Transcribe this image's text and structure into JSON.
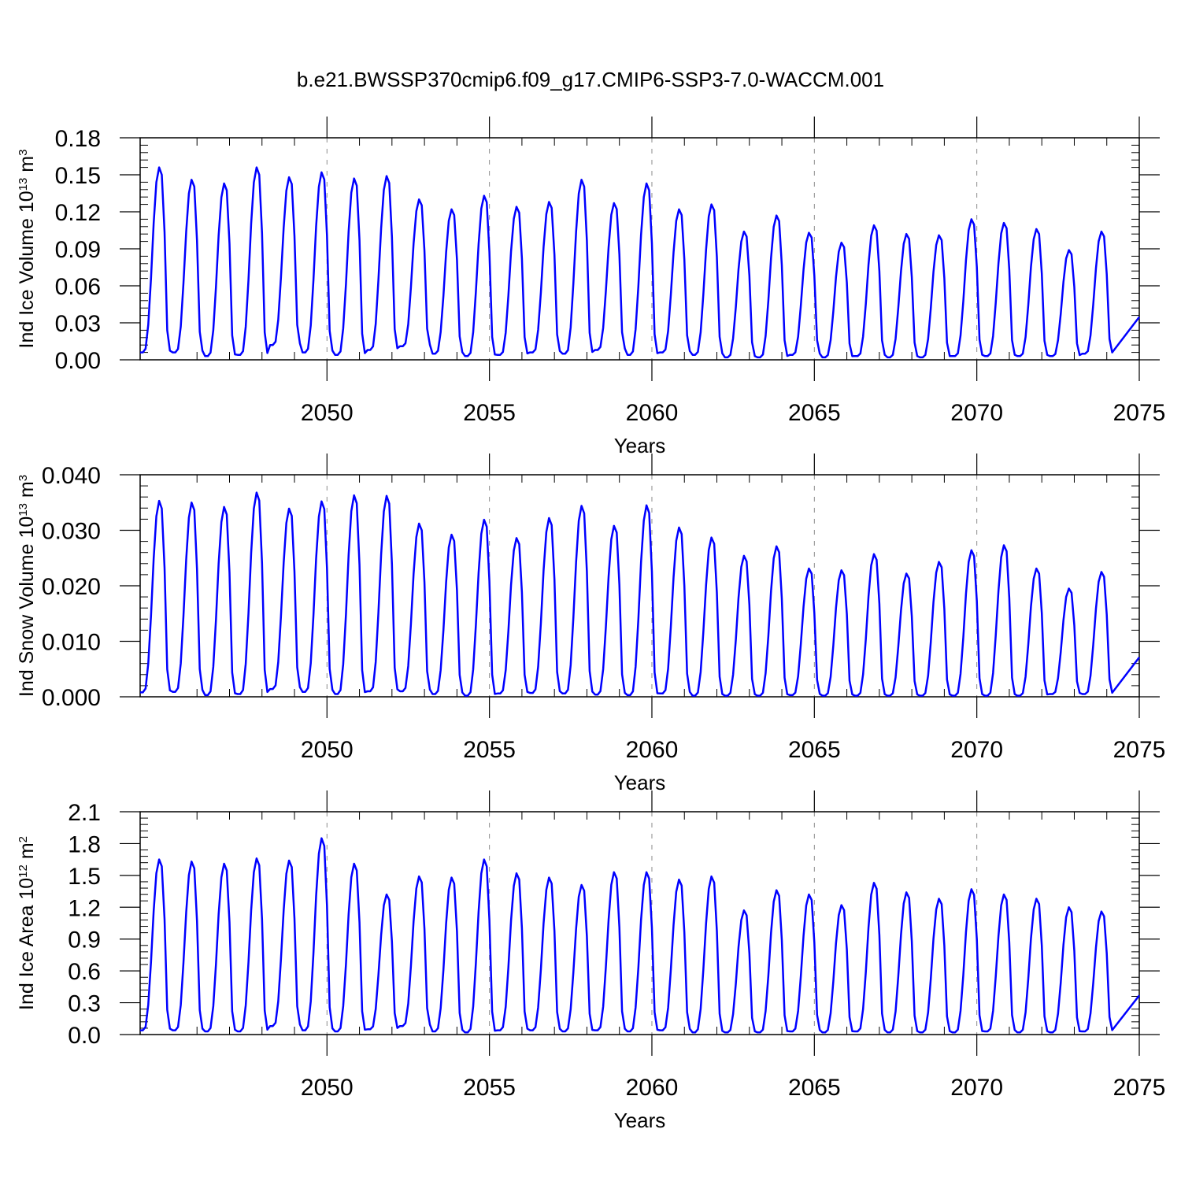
{
  "title": "b.e21.BWSSP370cmip6.f09_g17.CMIP6-SSP3-7.0-WACCM.001",
  "colors": {
    "series": "#0000ff",
    "axis": "#000000",
    "grid": "#8c8c8c",
    "background": "#ffffff"
  },
  "chart_data": [
    {
      "type": "line",
      "xlabel": "Years",
      "ylabel_main": "Ind Ice Volume 10",
      "ylabel_exp": "13",
      "ylabel_unit": " m",
      "ylabel_unit_exp": "3",
      "xlim": [
        2044.25,
        2075.0
      ],
      "xticks": [
        "2050",
        "2055",
        "2060",
        "2065",
        "2070",
        "2075"
      ],
      "xtick_values": [
        2050,
        2055,
        2060,
        2065,
        2070,
        2075
      ],
      "ylim": [
        0.0,
        0.18
      ],
      "yticks": [
        "0.00",
        "0.03",
        "0.06",
        "0.09",
        "0.12",
        "0.15",
        "0.18"
      ],
      "ytick_values": [
        0.0,
        0.03,
        0.06,
        0.09,
        0.12,
        0.15,
        0.18
      ],
      "vertical_gridlines": [
        2050,
        2055,
        2060,
        2065,
        2070
      ],
      "start_year": 2044.25,
      "annual_min": [
        0.006,
        0.006,
        0.003,
        0.004,
        0.012,
        0.006,
        0.004,
        0.008,
        0.011,
        0.005,
        0.003,
        0.004,
        0.006,
        0.005,
        0.008,
        0.004,
        0.006,
        0.004,
        0.002,
        0.002,
        0.004,
        0.002,
        0.003,
        0.002,
        0.002,
        0.003,
        0.003,
        0.003,
        0.003,
        0.005
      ],
      "annual_max": [
        0.156,
        0.146,
        0.143,
        0.156,
        0.148,
        0.152,
        0.147,
        0.149,
        0.13,
        0.122,
        0.133,
        0.124,
        0.128,
        0.146,
        0.127,
        0.143,
        0.122,
        0.126,
        0.104,
        0.117,
        0.103,
        0.095,
        0.109,
        0.102,
        0.101,
        0.114,
        0.111,
        0.106,
        0.089,
        0.104
      ]
    },
    {
      "type": "line",
      "xlabel": "Years",
      "ylabel_main": "Ind Snow Volume 10",
      "ylabel_exp": "13",
      "ylabel_unit": " m",
      "ylabel_unit_exp": "3",
      "xlim": [
        2044.25,
        2075.0
      ],
      "xticks": [
        "2050",
        "2055",
        "2060",
        "2065",
        "2070",
        "2075"
      ],
      "xtick_values": [
        2050,
        2055,
        2060,
        2065,
        2070,
        2075
      ],
      "ylim": [
        0.0,
        0.04
      ],
      "yticks": [
        "0.000",
        "0.010",
        "0.020",
        "0.030",
        "0.040"
      ],
      "ytick_values": [
        0.0,
        0.01,
        0.02,
        0.03,
        0.04
      ],
      "vertical_gridlines": [
        2050,
        2055,
        2060,
        2065,
        2070
      ],
      "start_year": 2044.25,
      "annual_min": [
        0.0008,
        0.0009,
        0.0003,
        0.0005,
        0.0014,
        0.0009,
        0.0005,
        0.001,
        0.001,
        0.0005,
        0.0002,
        0.0006,
        0.0007,
        0.0006,
        0.0004,
        0.0003,
        0.0006,
        0.0002,
        0.0002,
        0.0002,
        0.0003,
        0.0002,
        0.0002,
        0.0002,
        0.0002,
        0.0002,
        0.0002,
        0.0002,
        0.0005,
        0.0005
      ],
      "annual_max": [
        0.0353,
        0.035,
        0.0342,
        0.0368,
        0.0339,
        0.0352,
        0.0363,
        0.0362,
        0.0312,
        0.0292,
        0.0319,
        0.0286,
        0.0322,
        0.0344,
        0.0308,
        0.0345,
        0.0305,
        0.0287,
        0.0254,
        0.0271,
        0.0231,
        0.0228,
        0.0257,
        0.0222,
        0.0243,
        0.0264,
        0.0273,
        0.0231,
        0.0195,
        0.0225
      ]
    },
    {
      "type": "line",
      "xlabel": "Years",
      "ylabel_main": "Ind Ice Area 10",
      "ylabel_exp": "12",
      "ylabel_unit": " m",
      "ylabel_unit_exp": "2",
      "xlim": [
        2044.25,
        2075.0
      ],
      "xticks": [
        "2050",
        "2055",
        "2060",
        "2065",
        "2070",
        "2075"
      ],
      "xtick_values": [
        2050,
        2055,
        2060,
        2065,
        2070,
        2075
      ],
      "ylim": [
        0.0,
        2.1
      ],
      "yticks": [
        "0.0",
        "0.3",
        "0.6",
        "0.9",
        "1.2",
        "1.5",
        "1.8",
        "2.1"
      ],
      "ytick_values": [
        0.0,
        0.3,
        0.6,
        0.9,
        1.2,
        1.5,
        1.8,
        2.1
      ],
      "vertical_gridlines": [
        2050,
        2055,
        2060,
        2065,
        2070
      ],
      "start_year": 2044.25,
      "annual_min": [
        0.04,
        0.04,
        0.03,
        0.03,
        0.08,
        0.04,
        0.03,
        0.05,
        0.08,
        0.03,
        0.02,
        0.04,
        0.04,
        0.03,
        0.04,
        0.03,
        0.04,
        0.02,
        0.02,
        0.02,
        0.03,
        0.02,
        0.03,
        0.02,
        0.02,
        0.02,
        0.03,
        0.02,
        0.02,
        0.03
      ],
      "annual_max": [
        1.65,
        1.63,
        1.61,
        1.66,
        1.64,
        1.85,
        1.61,
        1.32,
        1.49,
        1.48,
        1.65,
        1.52,
        1.48,
        1.41,
        1.53,
        1.53,
        1.46,
        1.49,
        1.17,
        1.36,
        1.32,
        1.22,
        1.43,
        1.34,
        1.28,
        1.37,
        1.32,
        1.28,
        1.2,
        1.16
      ]
    }
  ]
}
